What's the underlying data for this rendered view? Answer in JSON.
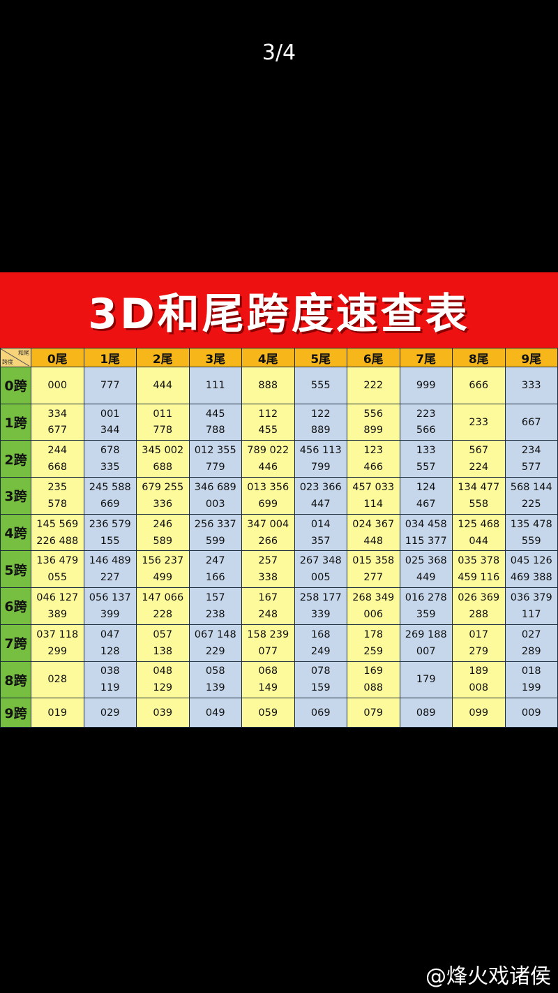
{
  "viewer": {
    "page_counter": "3/4",
    "watermark": "@烽火戏诸侯"
  },
  "table": {
    "title": "3D和尾跨度速查表",
    "corner_top": "和尾",
    "corner_bottom": "跨度",
    "columns": [
      "0尾",
      "1尾",
      "2尾",
      "3尾",
      "4尾",
      "5尾",
      "6尾",
      "7尾",
      "8尾",
      "9尾"
    ],
    "column_colors": [
      "#fdfa9c",
      "#c6d7ec"
    ],
    "header_color": "#f7b71b",
    "row_header_color": "#77bf40",
    "title_band_color": "#ee1111",
    "rows": [
      {
        "label": "0跨",
        "cells": [
          [
            "000"
          ],
          [
            "777"
          ],
          [
            "444"
          ],
          [
            "111"
          ],
          [
            "888"
          ],
          [
            "555"
          ],
          [
            "222"
          ],
          [
            "999"
          ],
          [
            "666"
          ],
          [
            "333"
          ]
        ]
      },
      {
        "label": "1跨",
        "cells": [
          [
            "334",
            "677"
          ],
          [
            "001",
            "344"
          ],
          [
            "011",
            "778"
          ],
          [
            "445",
            "788"
          ],
          [
            "112",
            "455"
          ],
          [
            "122",
            "889"
          ],
          [
            "556",
            "899"
          ],
          [
            "223",
            "566"
          ],
          [
            "233"
          ],
          [
            "667"
          ]
        ]
      },
      {
        "label": "2跨",
        "cells": [
          [
            "244",
            "668"
          ],
          [
            "678",
            "335"
          ],
          [
            "345 002",
            "688"
          ],
          [
            "012 355",
            "779"
          ],
          [
            "789 022",
            "446"
          ],
          [
            "456 113",
            "799"
          ],
          [
            "123",
            "466"
          ],
          [
            "133",
            "557"
          ],
          [
            "567",
            "224"
          ],
          [
            "234",
            "577"
          ]
        ]
      },
      {
        "label": "3跨",
        "cells": [
          [
            "235",
            "578"
          ],
          [
            "245 588",
            "669"
          ],
          [
            "679 255",
            "336"
          ],
          [
            "346 689",
            "003"
          ],
          [
            "013 356",
            "699"
          ],
          [
            "023 366",
            "447"
          ],
          [
            "457 033",
            "114"
          ],
          [
            "124",
            "467"
          ],
          [
            "134 477",
            "558"
          ],
          [
            "568 144",
            "225"
          ]
        ]
      },
      {
        "label": "4跨",
        "cells": [
          [
            "145 569",
            "226 488"
          ],
          [
            "236 579",
            "155"
          ],
          [
            "246",
            "589"
          ],
          [
            "256 337",
            "599"
          ],
          [
            "347 004",
            "266"
          ],
          [
            "014",
            "357"
          ],
          [
            "024 367",
            "448"
          ],
          [
            "034 458",
            "115 377"
          ],
          [
            "125 468",
            "044"
          ],
          [
            "135 478",
            "559"
          ]
        ]
      },
      {
        "label": "5跨",
        "cells": [
          [
            "136 479",
            "055"
          ],
          [
            "146 489",
            "227"
          ],
          [
            "156 237",
            "499"
          ],
          [
            "247",
            "166"
          ],
          [
            "257",
            "338"
          ],
          [
            "267 348",
            "005"
          ],
          [
            "015 358",
            "277"
          ],
          [
            "025 368",
            "449"
          ],
          [
            "035 378",
            "459 116"
          ],
          [
            "045 126",
            "469 388"
          ]
        ]
      },
      {
        "label": "6跨",
        "cells": [
          [
            "046 127",
            "389"
          ],
          [
            "056 137",
            "399"
          ],
          [
            "147 066",
            "228"
          ],
          [
            "157",
            "238"
          ],
          [
            "167",
            "248"
          ],
          [
            "258 177",
            "339"
          ],
          [
            "268 349",
            "006"
          ],
          [
            "016 278",
            "359"
          ],
          [
            "026 369",
            "288"
          ],
          [
            "036 379",
            "117"
          ]
        ]
      },
      {
        "label": "7跨",
        "cells": [
          [
            "037 118",
            "299"
          ],
          [
            "047",
            "128"
          ],
          [
            "057",
            "138"
          ],
          [
            "067 148",
            "229"
          ],
          [
            "158 239",
            "077"
          ],
          [
            "168",
            "249"
          ],
          [
            "178",
            "259"
          ],
          [
            "269 188",
            "007"
          ],
          [
            "017",
            "279"
          ],
          [
            "027",
            "289"
          ]
        ]
      },
      {
        "label": "8跨",
        "cells": [
          [
            "028"
          ],
          [
            "038",
            "119"
          ],
          [
            "048",
            "129"
          ],
          [
            "058",
            "139"
          ],
          [
            "068",
            "149"
          ],
          [
            "078",
            "159"
          ],
          [
            "169",
            "088"
          ],
          [
            "179"
          ],
          [
            "189",
            "008"
          ],
          [
            "018",
            "199"
          ]
        ]
      },
      {
        "label": "9跨",
        "cells": [
          [
            "019"
          ],
          [
            "029"
          ],
          [
            "039"
          ],
          [
            "049"
          ],
          [
            "059"
          ],
          [
            "069"
          ],
          [
            "079"
          ],
          [
            "089"
          ],
          [
            "099"
          ],
          [
            "009"
          ]
        ]
      }
    ]
  }
}
